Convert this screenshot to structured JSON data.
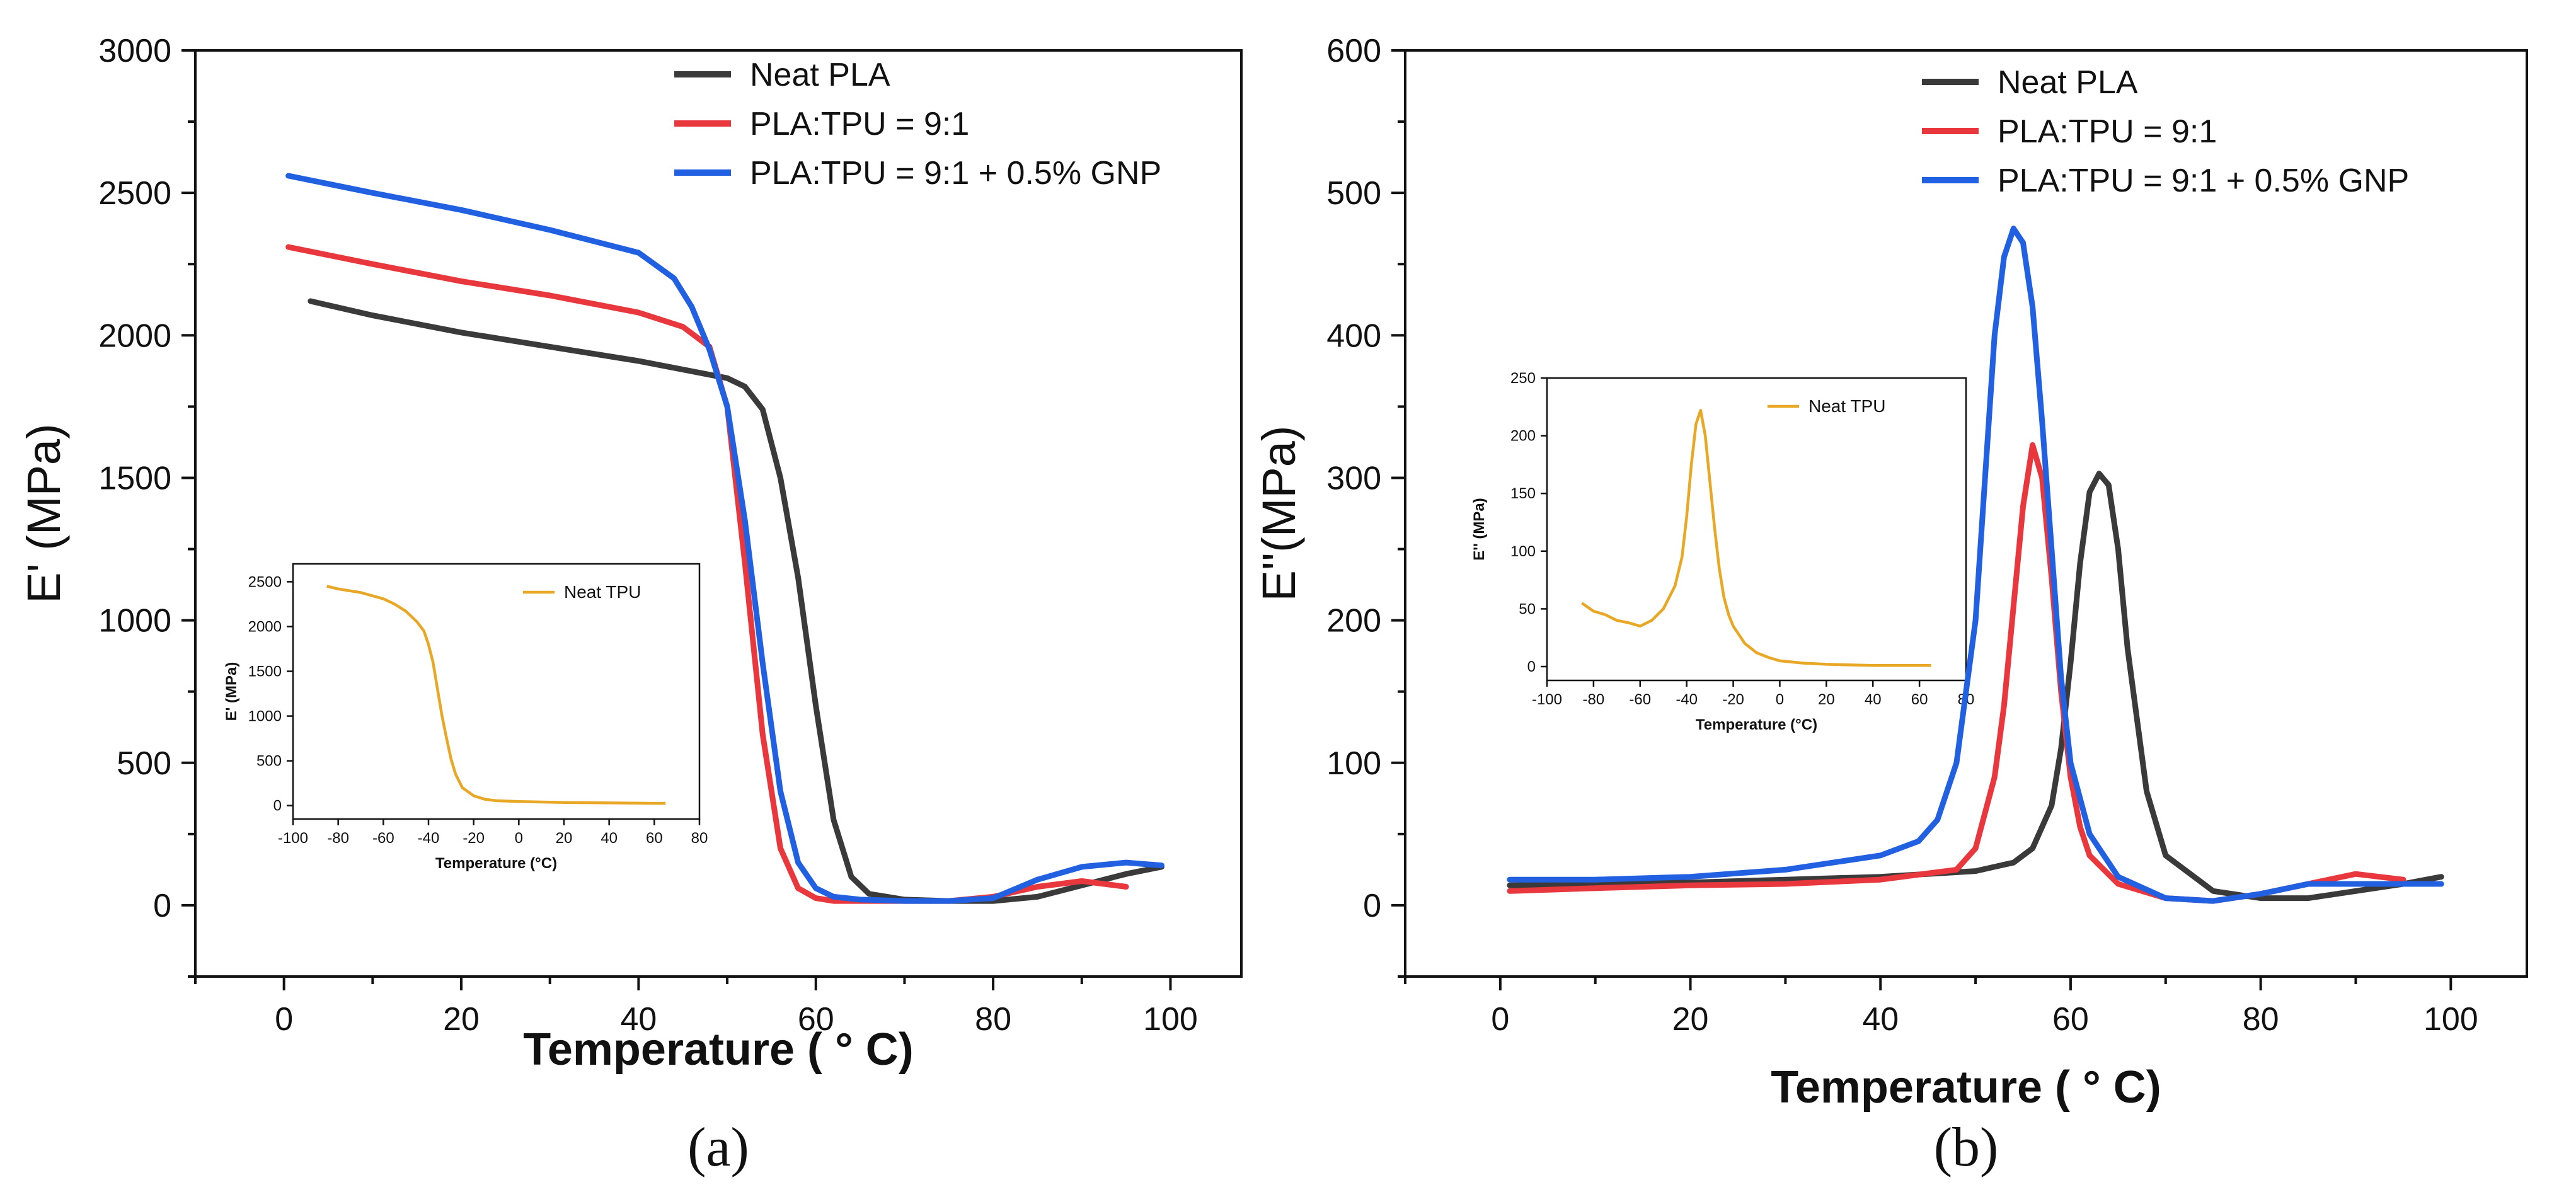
{
  "chart_data": [
    {
      "type": "line",
      "panel_label": "(a)",
      "xlabel": "Temperature ( ° C)",
      "ylabel": "E' (MPa)",
      "xlim": [
        -10,
        108
      ],
      "ylim": [
        -250,
        3000
      ],
      "xticks": [
        0,
        20,
        40,
        60,
        80,
        100
      ],
      "yticks": [
        0,
        500,
        1000,
        1500,
        2000,
        2500,
        3000
      ],
      "grid": false,
      "legend_position": "top-right",
      "series": [
        {
          "name": "Neat PLA",
          "color": "#3a3a3a",
          "x": [
            3,
            10,
            20,
            30,
            40,
            45,
            50,
            52,
            54,
            56,
            58,
            60,
            62,
            64,
            66,
            70,
            75,
            80,
            85,
            90,
            95,
            99
          ],
          "y": [
            2120,
            2070,
            2010,
            1960,
            1910,
            1880,
            1850,
            1820,
            1740,
            1500,
            1150,
            700,
            300,
            100,
            40,
            20,
            15,
            15,
            30,
            70,
            110,
            135
          ]
        },
        {
          "name": "PLA:TPU = 9:1",
          "color": "#e8383d",
          "x": [
            0.5,
            10,
            20,
            30,
            40,
            45,
            48,
            50,
            52,
            54,
            56,
            58,
            60,
            62,
            65,
            70,
            75,
            80,
            85,
            90,
            95
          ],
          "y": [
            2310,
            2250,
            2190,
            2140,
            2080,
            2030,
            1960,
            1750,
            1200,
            600,
            200,
            60,
            25,
            15,
            15,
            15,
            15,
            30,
            65,
            85,
            65
          ]
        },
        {
          "name": "PLA:TPU = 9:1 + 0.5% GNP",
          "color": "#2160e0",
          "x": [
            0.5,
            10,
            20,
            30,
            40,
            44,
            46,
            48,
            50,
            52,
            54,
            56,
            58,
            60,
            62,
            65,
            70,
            75,
            80,
            85,
            90,
            95,
            99
          ],
          "y": [
            2560,
            2500,
            2440,
            2370,
            2290,
            2200,
            2100,
            1950,
            1750,
            1350,
            850,
            400,
            150,
            60,
            30,
            20,
            15,
            15,
            25,
            90,
            135,
            150,
            140
          ]
        }
      ],
      "inset": {
        "xlabel": "Temperature (°C)",
        "ylabel": "E' (MPa)",
        "xlim": [
          -100,
          80
        ],
        "ylim": [
          -150,
          2700
        ],
        "xticks": [
          -100,
          -80,
          -60,
          -40,
          -20,
          0,
          20,
          40,
          60,
          80
        ],
        "yticks": [
          0,
          500,
          1000,
          1500,
          2000,
          2500
        ],
        "series": [
          {
            "name": "Neat TPU",
            "color": "#e8a826",
            "x": [
              -85,
              -80,
              -70,
              -60,
              -55,
              -50,
              -45,
              -42,
              -40,
              -38,
              -36,
              -34,
              -32,
              -30,
              -28,
              -25,
              -20,
              -15,
              -10,
              0,
              20,
              40,
              60,
              65
            ],
            "y": [
              2450,
              2420,
              2380,
              2310,
              2250,
              2170,
              2050,
              1950,
              1800,
              1600,
              1300,
              1000,
              750,
              520,
              350,
              200,
              110,
              70,
              55,
              45,
              35,
              30,
              25,
              25
            ]
          }
        ]
      }
    },
    {
      "type": "line",
      "panel_label": "(b)",
      "xlabel": "Temperature ( ° C)",
      "ylabel": "E''(MPa)",
      "xlim": [
        -10,
        108
      ],
      "ylim": [
        -50,
        600
      ],
      "xticks": [
        0,
        20,
        40,
        60,
        80,
        100
      ],
      "yticks": [
        0,
        100,
        200,
        300,
        400,
        500,
        600
      ],
      "grid": false,
      "legend_position": "top-right",
      "series": [
        {
          "name": "Neat PLA",
          "color": "#3a3a3a",
          "x": [
            1,
            10,
            20,
            30,
            40,
            50,
            54,
            56,
            58,
            59,
            60,
            61,
            62,
            63,
            64,
            65,
            66,
            68,
            70,
            75,
            80,
            85,
            90,
            95,
            99
          ],
          "y": [
            14,
            15,
            16,
            18,
            20,
            24,
            30,
            40,
            70,
            110,
            170,
            240,
            290,
            303,
            295,
            250,
            180,
            80,
            35,
            10,
            5,
            5,
            10,
            15,
            20
          ]
        },
        {
          "name": "PLA:TPU = 9:1",
          "color": "#e8383d",
          "x": [
            1,
            10,
            20,
            30,
            40,
            48,
            50,
            52,
            53,
            54,
            55,
            56,
            57,
            58,
            59,
            60,
            61,
            62,
            65,
            70,
            75,
            80,
            85,
            90,
            95
          ],
          "y": [
            10,
            12,
            14,
            15,
            18,
            25,
            40,
            90,
            140,
            210,
            280,
            323,
            300,
            230,
            150,
            90,
            55,
            35,
            15,
            5,
            3,
            8,
            15,
            22,
            18
          ]
        },
        {
          "name": "PLA:TPU = 9:1 + 0.5% GNP",
          "color": "#2160e0",
          "x": [
            1,
            10,
            20,
            30,
            40,
            44,
            46,
            48,
            50,
            51,
            52,
            53,
            54,
            55,
            56,
            57,
            58,
            59,
            60,
            62,
            65,
            70,
            75,
            80,
            85,
            90,
            95,
            99
          ],
          "y": [
            18,
            18,
            20,
            25,
            35,
            45,
            60,
            100,
            200,
            300,
            400,
            455,
            475,
            465,
            420,
            340,
            250,
            160,
            100,
            50,
            20,
            5,
            3,
            8,
            15,
            15,
            15,
            15
          ]
        }
      ],
      "inset": {
        "xlabel": "Temperature (°C)",
        "ylabel": "E'' (MPa)",
        "xlim": [
          -100,
          80
        ],
        "ylim": [
          -12,
          250
        ],
        "xticks": [
          -100,
          -80,
          -60,
          -40,
          -20,
          0,
          20,
          40,
          60,
          80
        ],
        "yticks": [
          0,
          50,
          100,
          150,
          200,
          250
        ],
        "series": [
          {
            "name": "Neat TPU",
            "color": "#e8a826",
            "x": [
              -85,
              -80,
              -75,
              -70,
              -65,
              -60,
              -55,
              -50,
              -45,
              -42,
              -40,
              -38,
              -36,
              -34,
              -32,
              -30,
              -28,
              -26,
              -24,
              -22,
              -20,
              -15,
              -10,
              -5,
              0,
              10,
              20,
              40,
              60,
              65
            ],
            "y": [
              55,
              48,
              45,
              40,
              38,
              35,
              40,
              50,
              70,
              95,
              130,
              175,
              210,
              222,
              200,
              160,
              120,
              85,
              60,
              45,
              35,
              20,
              12,
              8,
              5,
              3,
              2,
              1,
              1,
              1
            ]
          }
        ]
      }
    }
  ]
}
